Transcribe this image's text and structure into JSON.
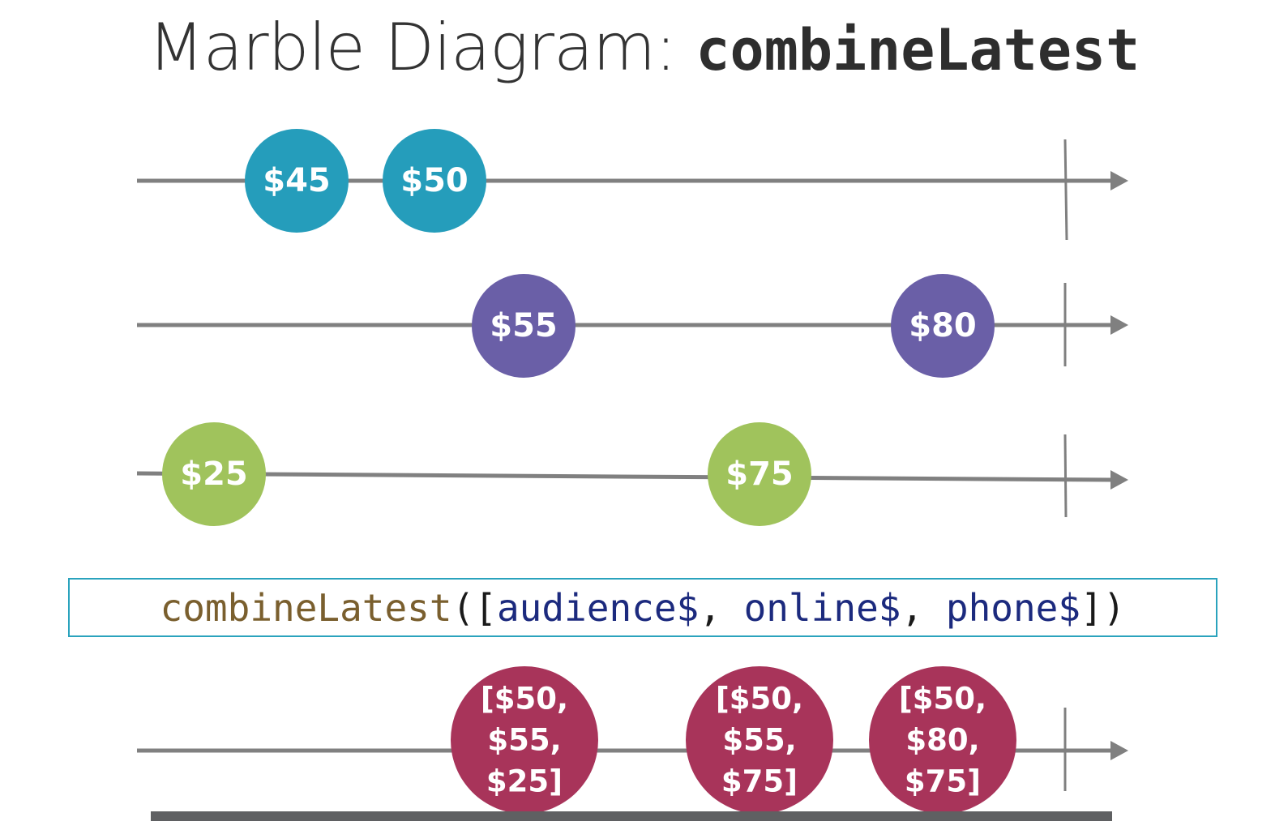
{
  "title": {
    "prefix": "Marble Diagram: ",
    "operator": "combineLatest"
  },
  "colors": {
    "line": "#808080",
    "audience": "#259dbb",
    "online": "#6a5fa7",
    "phone": "#a0c35c",
    "result": "#a8345a",
    "code_box_border": "#2aa3bd"
  },
  "streams": [
    {
      "id": "audience",
      "marbles": [
        {
          "label": "$45"
        },
        {
          "label": "$50"
        }
      ]
    },
    {
      "id": "online",
      "marbles": [
        {
          "label": "$55"
        },
        {
          "label": "$80"
        }
      ]
    },
    {
      "id": "phone",
      "marbles": [
        {
          "label": "$25"
        },
        {
          "label": "$75"
        }
      ]
    }
  ],
  "operator_call": {
    "fn": "combineLatest",
    "open": "([",
    "args": [
      "audience$",
      "online$",
      "phone$"
    ],
    "separator": ", ",
    "close": "])"
  },
  "result": {
    "marbles": [
      {
        "lines": [
          "[$50,",
          "$55,",
          "$25]"
        ]
      },
      {
        "lines": [
          "[$50,",
          "$55,",
          "$75]"
        ]
      },
      {
        "lines": [
          "[$50,",
          "$80,",
          "$75]"
        ]
      }
    ]
  }
}
